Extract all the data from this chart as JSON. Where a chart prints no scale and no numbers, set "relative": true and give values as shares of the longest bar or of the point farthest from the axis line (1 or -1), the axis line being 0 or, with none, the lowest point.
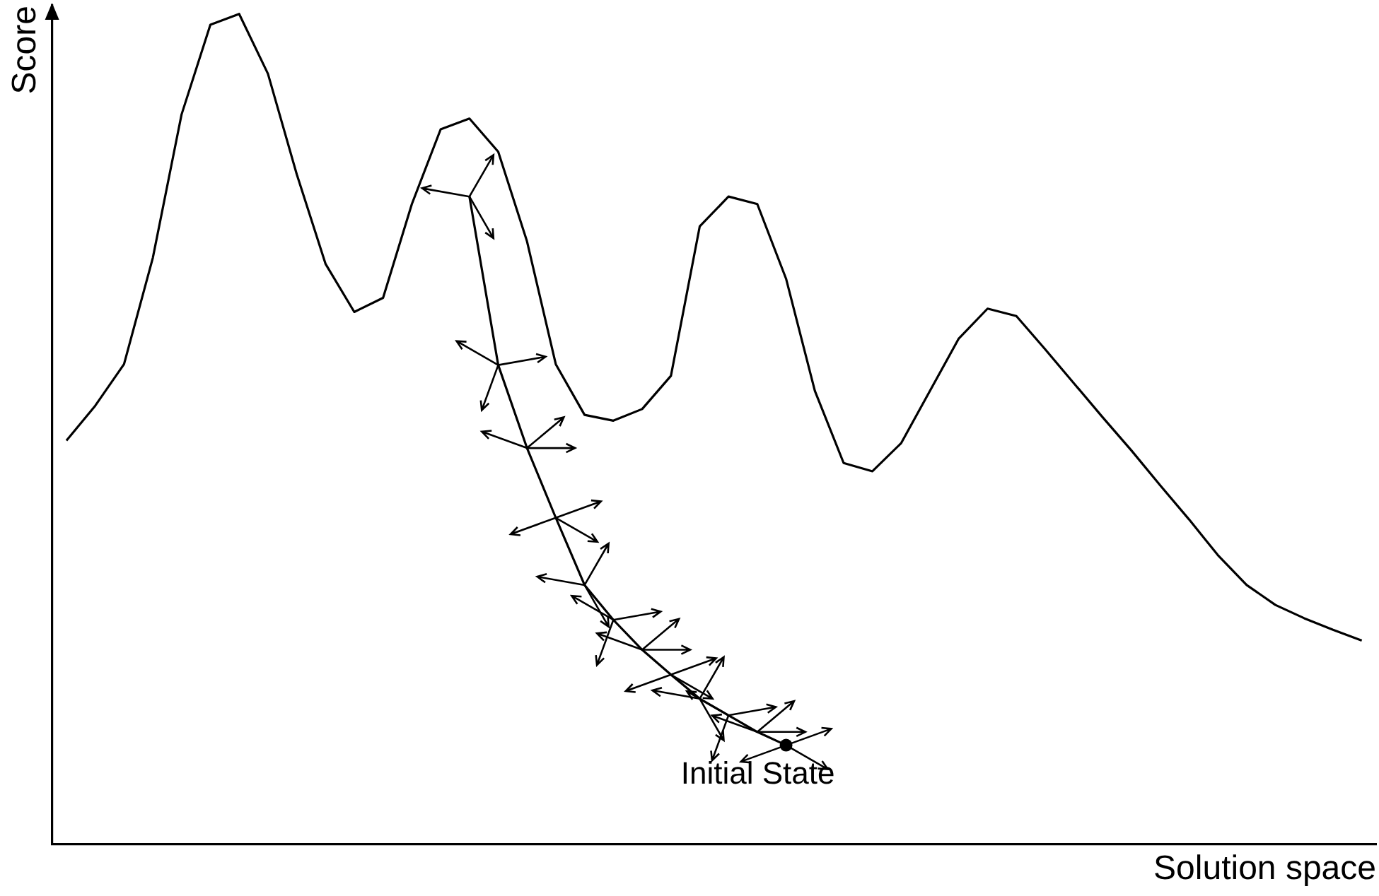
{
  "chart_data": {
    "type": "line",
    "relative": true,
    "xlabel": "Solution space",
    "ylabel": "Score",
    "tick_labels": false,
    "grid": false,
    "legend": false,
    "marker": "none",
    "line_style": "solid",
    "categories": [
      null,
      null,
      null,
      null,
      null,
      null,
      null,
      null,
      null,
      null,
      null,
      null,
      null,
      null,
      null,
      null,
      null,
      null,
      null,
      null,
      null,
      null,
      null,
      null,
      null,
      null,
      null,
      null,
      null,
      null,
      null,
      null,
      null,
      null,
      null,
      null,
      null,
      null,
      null,
      null,
      null,
      null,
      null,
      null,
      null,
      null
    ],
    "series": [
      {
        "color": "#000000",
        "values": [
          0.486,
          0.528,
          0.578,
          0.706,
          0.879,
          0.987,
          1,
          0.928,
          0.807,
          0.699,
          0.641,
          0.658,
          0.771,
          0.861,
          0.874,
          0.834,
          0.726,
          0.578,
          0.517,
          0.51,
          0.524,
          0.564,
          0.744,
          0.78,
          0.771,
          0.681,
          0.546,
          0.459,
          0.449,
          0.483,
          0.546,
          0.609,
          0.645,
          0.636,
          0.596,
          0.555,
          0.514,
          0.474,
          0.432,
          0.391,
          0.348,
          0.312,
          0.288,
          0.272,
          0.258,
          0.245
        ]
      },
      {
        "color": "#000000",
        "values": [
          null,
          null,
          null,
          null,
          null,
          null,
          null,
          null,
          null,
          null,
          null,
          null,
          null,
          null,
          0.78,
          0.577,
          0.477,
          0.393,
          0.312,
          0.27,
          0.234,
          0.204,
          0.175,
          0.155,
          0.135,
          0.119,
          null,
          null,
          null,
          null,
          null,
          null,
          null,
          null,
          null,
          null,
          null,
          null,
          null,
          null,
          null,
          null,
          null,
          null,
          null,
          null
        ]
      }
    ],
    "annotations": [
      "Initial State"
    ]
  }
}
